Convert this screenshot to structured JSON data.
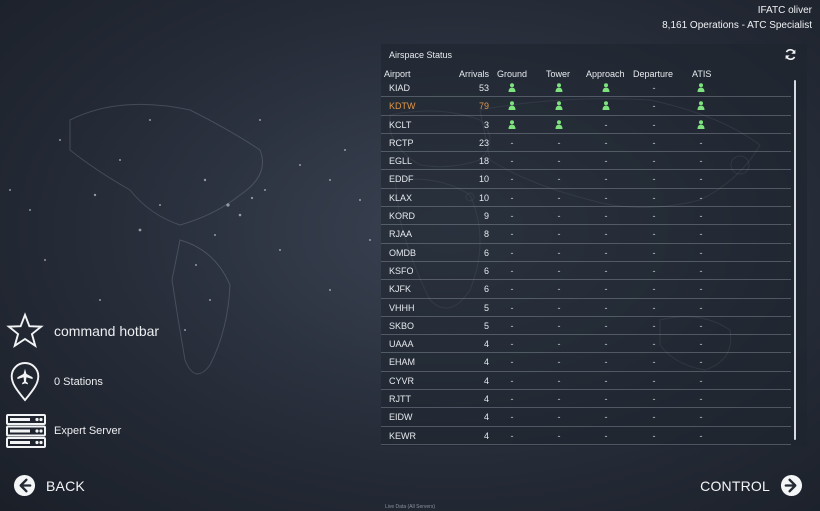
{
  "user": {
    "name": "IFATC oliver",
    "subtitle": "8,161 Operations - ATC Specialist"
  },
  "panel": {
    "title": "Airspace Status",
    "columns": [
      "Airport",
      "Arrivals",
      "Ground",
      "Tower",
      "Approach",
      "Departure",
      "ATIS"
    ],
    "rows": [
      {
        "airport": "KIAD",
        "arrivals": "53",
        "ground": "person-icon",
        "tower": "person-icon",
        "approach": "person-icon",
        "departure": "-",
        "atis": "person-icon"
      },
      {
        "airport": "KDTW",
        "arrivals": "79",
        "ground": "person-icon",
        "tower": "person-icon",
        "approach": "person-icon",
        "departure": "-",
        "atis": "person-icon",
        "highlight": true
      },
      {
        "airport": "KCLT",
        "arrivals": "3",
        "ground": "person-icon",
        "tower": "person-icon",
        "approach": "-",
        "departure": "-",
        "atis": "person-icon"
      },
      {
        "airport": "RCTP",
        "arrivals": "23",
        "ground": "-",
        "tower": "-",
        "approach": "-",
        "departure": "-",
        "atis": "-"
      },
      {
        "airport": "EGLL",
        "arrivals": "18",
        "ground": "-",
        "tower": "-",
        "approach": "-",
        "departure": "-",
        "atis": "-"
      },
      {
        "airport": "EDDF",
        "arrivals": "10",
        "ground": "-",
        "tower": "-",
        "approach": "-",
        "departure": "-",
        "atis": "-"
      },
      {
        "airport": "KLAX",
        "arrivals": "10",
        "ground": "-",
        "tower": "-",
        "approach": "-",
        "departure": "-",
        "atis": "-"
      },
      {
        "airport": "KORD",
        "arrivals": "9",
        "ground": "-",
        "tower": "-",
        "approach": "-",
        "departure": "-",
        "atis": "-"
      },
      {
        "airport": "RJAA",
        "arrivals": "8",
        "ground": "-",
        "tower": "-",
        "approach": "-",
        "departure": "-",
        "atis": "-"
      },
      {
        "airport": "OMDB",
        "arrivals": "6",
        "ground": "-",
        "tower": "-",
        "approach": "-",
        "departure": "-",
        "atis": "-"
      },
      {
        "airport": "KSFO",
        "arrivals": "6",
        "ground": "-",
        "tower": "-",
        "approach": "-",
        "departure": "-",
        "atis": "-"
      },
      {
        "airport": "KJFK",
        "arrivals": "6",
        "ground": "-",
        "tower": "-",
        "approach": "-",
        "departure": "-",
        "atis": "-"
      },
      {
        "airport": "VHHH",
        "arrivals": "5",
        "ground": "-",
        "tower": "-",
        "approach": "-",
        "departure": "-",
        "atis": "-"
      },
      {
        "airport": "SKBO",
        "arrivals": "5",
        "ground": "-",
        "tower": "-",
        "approach": "-",
        "departure": "-",
        "atis": "-"
      },
      {
        "airport": "UAAA",
        "arrivals": "4",
        "ground": "-",
        "tower": "-",
        "approach": "-",
        "departure": "-",
        "atis": "-"
      },
      {
        "airport": "EHAM",
        "arrivals": "4",
        "ground": "-",
        "tower": "-",
        "approach": "-",
        "departure": "-",
        "atis": "-"
      },
      {
        "airport": "CYVR",
        "arrivals": "4",
        "ground": "-",
        "tower": "-",
        "approach": "-",
        "departure": "-",
        "atis": "-"
      },
      {
        "airport": "RJTT",
        "arrivals": "4",
        "ground": "-",
        "tower": "-",
        "approach": "-",
        "departure": "-",
        "atis": "-"
      },
      {
        "airport": "EIDW",
        "arrivals": "4",
        "ground": "-",
        "tower": "-",
        "approach": "-",
        "departure": "-",
        "atis": "-"
      },
      {
        "airport": "KEWR",
        "arrivals": "4",
        "ground": "-",
        "tower": "-",
        "approach": "-",
        "departure": "-",
        "atis": "-"
      }
    ]
  },
  "sidebar": {
    "hotbar_label": "command hotbar",
    "stations_label": "0 Stations",
    "server_label": "Expert Server"
  },
  "nav": {
    "back_label": "BACK",
    "control_label": "CONTROL"
  },
  "footnote": "Live Data (All Servers)",
  "colors": {
    "highlight": "#e0954a",
    "person": "#7ee37e",
    "text": "#e6e9ee"
  }
}
